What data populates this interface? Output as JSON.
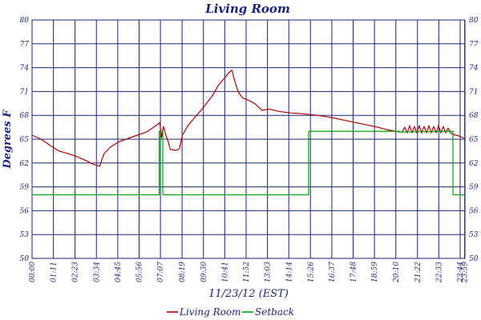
{
  "chart_data": {
    "type": "line",
    "title": "Living Room",
    "xlabel": "11/23/12 (EST)",
    "ylabel": "Degrees F",
    "ylim": [
      50,
      80
    ],
    "yticks": [
      50,
      53,
      56,
      59,
      62,
      65,
      68,
      71,
      74,
      77,
      80
    ],
    "xlim": [
      0,
      1440
    ],
    "xticks": [
      {
        "label": "00:00",
        "minutes": 0
      },
      {
        "label": "01:11",
        "minutes": 71
      },
      {
        "label": "02:23",
        "minutes": 143
      },
      {
        "label": "03:34",
        "minutes": 214
      },
      {
        "label": "04:45",
        "minutes": 285
      },
      {
        "label": "05:56",
        "minutes": 356
      },
      {
        "label": "07:07",
        "minutes": 427
      },
      {
        "label": "08:19",
        "minutes": 499
      },
      {
        "label": "09:30",
        "minutes": 570
      },
      {
        "label": "10:41",
        "minutes": 641
      },
      {
        "label": "11:52",
        "minutes": 712
      },
      {
        "label": "13:03",
        "minutes": 783
      },
      {
        "label": "14:14",
        "minutes": 854
      },
      {
        "label": "15:26",
        "minutes": 926
      },
      {
        "label": "16:37",
        "minutes": 997
      },
      {
        "label": "17:48",
        "minutes": 1068
      },
      {
        "label": "18:59",
        "minutes": 1139
      },
      {
        "label": "20:10",
        "minutes": 1210
      },
      {
        "label": "21:22",
        "minutes": 1282
      },
      {
        "label": "22:33",
        "minutes": 1353
      },
      {
        "label": "23:44",
        "minutes": 1424
      },
      {
        "label": "23:59",
        "minutes": 1439
      }
    ],
    "grid": true,
    "legend_position": "bottom",
    "series": [
      {
        "name": "Living Room",
        "color": "#b00000",
        "points": [
          [
            0,
            65.5
          ],
          [
            30,
            65.0
          ],
          [
            60,
            64.2
          ],
          [
            90,
            63.5
          ],
          [
            120,
            63.2
          ],
          [
            150,
            62.8
          ],
          [
            180,
            62.3
          ],
          [
            200,
            61.9
          ],
          [
            215,
            61.7
          ],
          [
            225,
            61.6
          ],
          [
            232,
            62.4
          ],
          [
            240,
            63.2
          ],
          [
            260,
            64.0
          ],
          [
            290,
            64.7
          ],
          [
            320,
            65.1
          ],
          [
            350,
            65.5
          ],
          [
            380,
            65.9
          ],
          [
            400,
            66.4
          ],
          [
            415,
            66.8
          ],
          [
            425,
            67.1
          ],
          [
            430,
            65.2
          ],
          [
            437,
            66.6
          ],
          [
            445,
            65.5
          ],
          [
            452,
            64.8
          ],
          [
            460,
            63.7
          ],
          [
            480,
            63.6
          ],
          [
            490,
            63.8
          ],
          [
            500,
            65.5
          ],
          [
            520,
            66.8
          ],
          [
            540,
            67.7
          ],
          [
            570,
            69.0
          ],
          [
            600,
            70.5
          ],
          [
            620,
            71.8
          ],
          [
            640,
            72.7
          ],
          [
            655,
            73.4
          ],
          [
            665,
            73.7
          ],
          [
            672,
            72.6
          ],
          [
            685,
            71.0
          ],
          [
            700,
            70.2
          ],
          [
            720,
            69.9
          ],
          [
            740,
            69.5
          ],
          [
            755,
            69.0
          ],
          [
            765,
            68.6
          ],
          [
            775,
            68.7
          ],
          [
            790,
            68.8
          ],
          [
            820,
            68.5
          ],
          [
            860,
            68.3
          ],
          [
            900,
            68.2
          ],
          [
            950,
            68.0
          ],
          [
            1000,
            67.7
          ],
          [
            1050,
            67.3
          ],
          [
            1100,
            66.9
          ],
          [
            1150,
            66.5
          ],
          [
            1180,
            66.2
          ],
          [
            1210,
            66.0
          ],
          [
            1230,
            65.9
          ],
          [
            1240,
            66.5
          ],
          [
            1248,
            65.8
          ],
          [
            1256,
            66.7
          ],
          [
            1264,
            65.8
          ],
          [
            1272,
            66.6
          ],
          [
            1280,
            65.8
          ],
          [
            1288,
            66.7
          ],
          [
            1296,
            65.8
          ],
          [
            1304,
            66.6
          ],
          [
            1312,
            65.8
          ],
          [
            1320,
            66.7
          ],
          [
            1328,
            65.8
          ],
          [
            1336,
            66.6
          ],
          [
            1344,
            65.8
          ],
          [
            1352,
            66.7
          ],
          [
            1360,
            65.8
          ],
          [
            1368,
            66.6
          ],
          [
            1376,
            65.8
          ],
          [
            1384,
            66.4
          ],
          [
            1392,
            65.8
          ],
          [
            1400,
            65.6
          ],
          [
            1420,
            65.4
          ],
          [
            1439,
            65.1
          ]
        ]
      },
      {
        "name": "Setback",
        "color": "#00a000",
        "points": [
          [
            0,
            58
          ],
          [
            423,
            58
          ],
          [
            423,
            66
          ],
          [
            435,
            66
          ],
          [
            435,
            58
          ],
          [
            920,
            58
          ],
          [
            920,
            66
          ],
          [
            1220,
            66
          ],
          [
            1222,
            65.9
          ],
          [
            1400,
            66
          ],
          [
            1400,
            58
          ],
          [
            1439,
            58
          ]
        ]
      }
    ]
  }
}
